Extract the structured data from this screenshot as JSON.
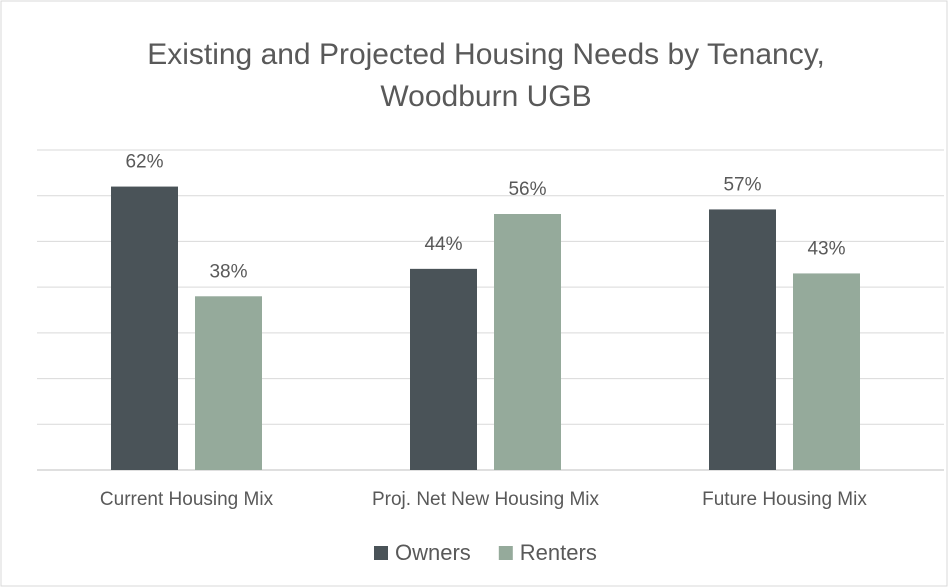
{
  "chart_data": {
    "type": "bar",
    "title": [
      "Existing and Projected Housing Needs by Tenancy,",
      "Woodburn UGB"
    ],
    "categories": [
      "Current Housing Mix",
      "Proj. Net New Housing Mix",
      "Future Housing Mix"
    ],
    "series": [
      {
        "name": "Owners",
        "color": "#4a5358",
        "values": [
          62,
          44,
          57
        ],
        "value_labels": [
          "62%",
          "44%",
          "57%"
        ]
      },
      {
        "name": "Renters",
        "color": "#95aa9b",
        "values": [
          38,
          56,
          43
        ],
        "value_labels": [
          "38%",
          "56%",
          "43%"
        ]
      }
    ],
    "ylim": [
      0,
      70
    ],
    "yticks": [
      0,
      10,
      20,
      30,
      40,
      50,
      60,
      70
    ],
    "grid": true,
    "legend": "bottom"
  }
}
